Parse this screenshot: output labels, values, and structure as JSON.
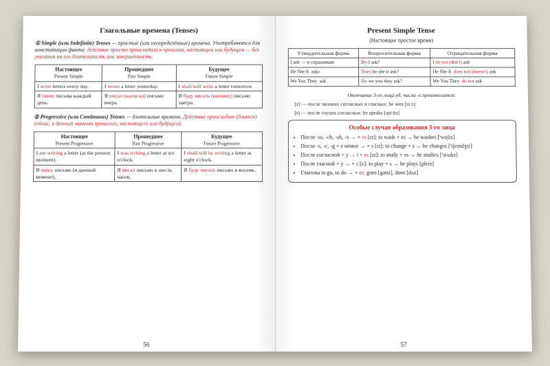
{
  "left": {
    "title": "Глагольные времена (Tenses)",
    "intro1_lead": "① Simple (или Indefinite) Tenses",
    "intro1_body": " — простые (или неопределённые) времена. Употребляются для констатации факта: ",
    "intro1_red": "действие просто происходило в прошлом, настоящем или будущем — без указания на его длительность или завершённость.",
    "table1": {
      "h1a": "Настоящее",
      "h1b": "Present Simple",
      "h2a": "Прошедшее",
      "h2b": "Past Simple",
      "h3a": "Будущее",
      "h3b": "Future Simple",
      "r1c1": "I write letters every day.",
      "r1c1_red": "write",
      "r1c2": "I wrote a letter yesterday.",
      "r1c2_red": "wrote",
      "r1c3": "I shall/will write a letter tomorrow.",
      "r1c3_red": "shall/will write",
      "r2c1a": "Я ",
      "r2c1r": "пишу",
      "r2c1b": " письма каждый день.",
      "r2c2a": "Я ",
      "r2c2r": "писал (написал)",
      "r2c2b": " письмо вчера.",
      "r2c3a": "Я ",
      "r2c3r": "буду писать (напишу)",
      "r2c3b": " письмо завтра."
    },
    "intro2_lead": "② Progressive (или Continuous) Tenses",
    "intro2_body": " — длительные времена. ",
    "intro2_red": "Действие происходит (длится) сейчас, в данный момент прошлого, настоящего или будущего.",
    "table2": {
      "h1a": "Настоящее",
      "h1b": "Present Progressive",
      "h2a": "Прошедшее",
      "h2b": "Past Progressive",
      "h3a": "Будущее",
      "h3b": "Future Progressive",
      "r1c1": "I am writing a letter (at the present moment).",
      "r1c1_red": "am writing",
      "r1c2": "I was writing a letter at six o'clock.",
      "r1c2_red": "was writing",
      "r1c3": "I shall/will be writing a letter at eight o'clock.",
      "r1c3_red": "shall/will be writing",
      "r2c1a": "Я ",
      "r2c1r": "пишу",
      "r2c1b": " письмо (в данный момент).",
      "r2c2a": "Я ",
      "r2c2r": "писал",
      "r2c2b": " письмо в шесть часов.",
      "r2c3a": "Я ",
      "r2c3r": "буду писать",
      "r2c3b": " письмо в восемь."
    },
    "page_num": "56"
  },
  "right": {
    "title": "Present Simple Tense",
    "subtitle": "(Настоящее простое время)",
    "forms": {
      "h1": "Утвердительная форма",
      "h2": "Вопросительная форма",
      "h3": "Отрицательная форма",
      "r1_aff": "I ask — я спрашиваю",
      "r1_q_aux": "Do",
      "r1_q_rest": " I ask?",
      "r1_neg_pre": "I ",
      "r1_neg_aux": "do not (don't)",
      "r1_neg_post": " ask",
      "r2_subj": "He She It",
      "r2_verb": "asks",
      "r2_q_aux": "Does",
      "r2_q_rest": " he she it ask?",
      "r2_neg_aux": "does not (doesn't)",
      "r2_neg_rest": "He She It ... ask",
      "r3_subj": "We You They",
      "r3_verb": "ask",
      "r3_q_aux": "Do",
      "r3_q_rest": " we you they ask?",
      "r3_neg_aux": "do not",
      "r3_neg_rest": "We You They ... ask"
    },
    "pron_title": "Окончание 3-го лица ед. числа -s произносится:",
    "pron1": "[z] — после звонких согласных и гласных: he sees [siːz]",
    "pron2": "[s] — после глухих согласных: he speaks [spiːks]",
    "box": {
      "title": "Особые случаи образования 3-го лица",
      "li1a": "После -ss, -ch, -sh, -x → + ",
      "li1r": "es",
      "li1b": " [ɪz]:  to wash + es → he washes ['wɒʃɪz]",
      "li2a": "После -s, -c, -g + e немое → + ",
      "li2r": "s",
      "li2b": " [ɪz]:  to change + s → he changes ['tʃeɪndʒɪz]",
      "li3a": "После согласной + y → i + ",
      "li3r": "es",
      "li3b": " [ɪz]:  to study + es → he studies ['stʌdɪz]",
      "li4a": "После гласной + y → + ",
      "li4r": "s",
      "li4b": " [z]:  to play + s → he plays [pleɪz]",
      "li5a": "Глаголы to go, to do → + ",
      "li5r": "es",
      "li5b": ":  goes [ɡəʊz], does [dʌz]"
    },
    "page_num": "57"
  }
}
